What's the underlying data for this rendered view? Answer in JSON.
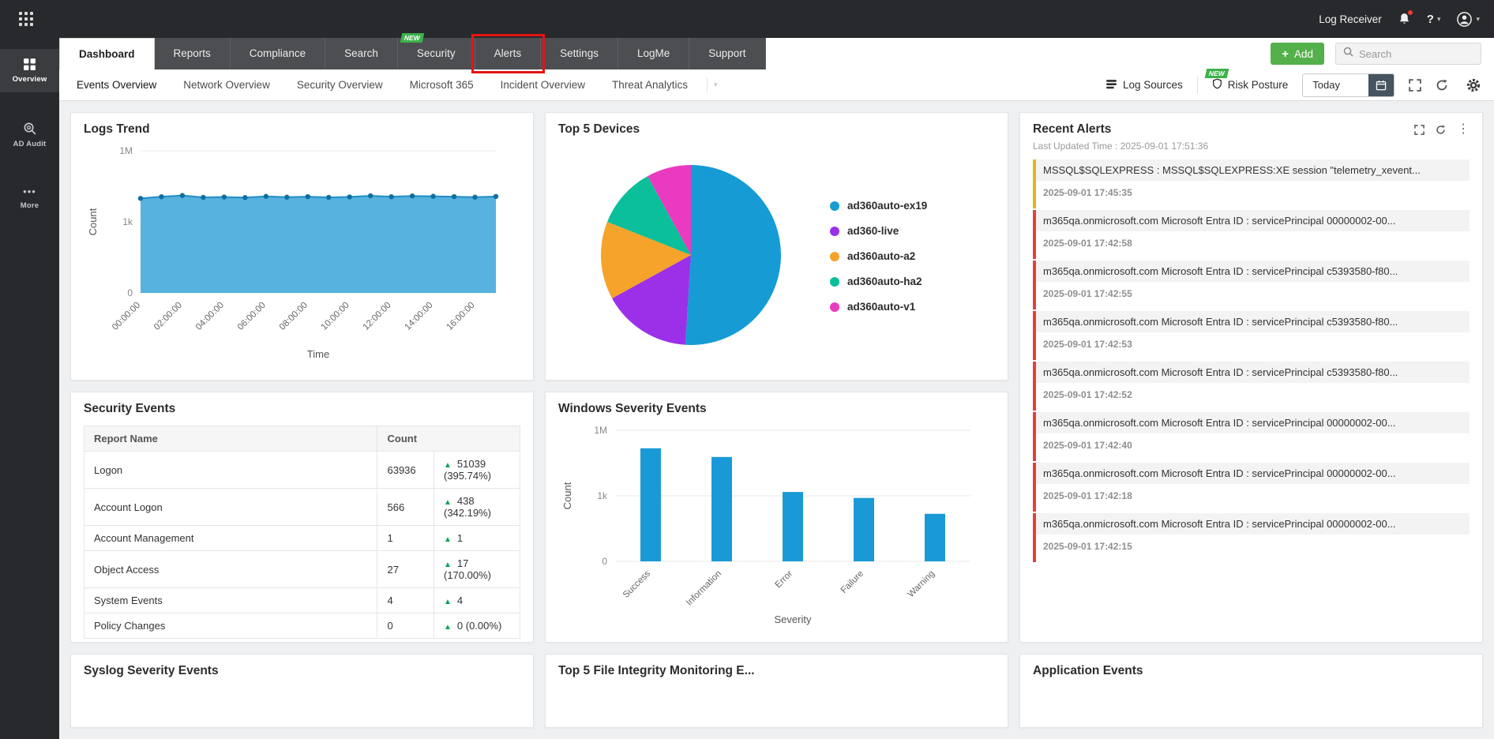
{
  "topbar": {
    "product_label": "Log Receiver"
  },
  "icons": {
    "help": "?",
    "caret": "▾",
    "kebab": "⋮",
    "ellipsis": "•••",
    "plus": "+",
    "trend_up": "▲"
  },
  "colors": {
    "accent_green": "#54b04a",
    "badge_green": "#3cb24a",
    "annotation_red": "#e51414",
    "alert_red": "#e4403a",
    "alert_yellow": "#e3b51c",
    "chart_blue": "#2f9fd8"
  },
  "sidebar": {
    "items": [
      {
        "label": "Overview",
        "active": true
      },
      {
        "label": "AD Audit"
      },
      {
        "label": "More"
      }
    ]
  },
  "tabs": {
    "items": [
      {
        "label": "Dashboard",
        "active": true
      },
      {
        "label": "Reports"
      },
      {
        "label": "Compliance"
      },
      {
        "label": "Search"
      },
      {
        "label": "Security",
        "badge": "NEW"
      },
      {
        "label": "Alerts",
        "annotated": true
      },
      {
        "label": "Settings"
      },
      {
        "label": "LogMe"
      },
      {
        "label": "Support"
      }
    ],
    "add_label": "Add",
    "search_placeholder": "Search"
  },
  "subnav": {
    "items": [
      "Events Overview",
      "Network Overview",
      "Security Overview",
      "Microsoft 365",
      "Incident Overview",
      "Threat Analytics"
    ],
    "log_sources_label": "Log Sources",
    "risk_posture_label": "Risk Posture",
    "risk_posture_badge": "NEW",
    "date_value": "Today"
  },
  "cards": {
    "logs_trend": {
      "title": "Logs Trend"
    },
    "top_devices": {
      "title": "Top 5 Devices"
    },
    "recent_alerts": {
      "title": "Recent Alerts",
      "last_updated": "Last Updated Time : 2025-09-01 17:51:36",
      "items": [
        {
          "text": "MSSQL$SQLEXPRESS : MSSQL$SQLEXPRESS:XE session \"telemetry_xevent...",
          "time": "2025-09-01 17:45:35",
          "severity_color": "#e3b51c"
        },
        {
          "text": "m365qa.onmicrosoft.com Microsoft Entra ID : servicePrincipal 00000002-00...",
          "time": "2025-09-01 17:42:58",
          "severity_color": "#e4403a"
        },
        {
          "text": "m365qa.onmicrosoft.com Microsoft Entra ID : servicePrincipal c5393580-f80...",
          "time": "2025-09-01 17:42:55",
          "severity_color": "#e4403a"
        },
        {
          "text": "m365qa.onmicrosoft.com Microsoft Entra ID : servicePrincipal c5393580-f80...",
          "time": "2025-09-01 17:42:53",
          "severity_color": "#e4403a"
        },
        {
          "text": "m365qa.onmicrosoft.com Microsoft Entra ID : servicePrincipal c5393580-f80...",
          "time": "2025-09-01 17:42:52",
          "severity_color": "#e4403a"
        },
        {
          "text": "m365qa.onmicrosoft.com Microsoft Entra ID : servicePrincipal 00000002-00...",
          "time": "2025-09-01 17:42:40",
          "severity_color": "#e4403a"
        },
        {
          "text": "m365qa.onmicrosoft.com Microsoft Entra ID : servicePrincipal 00000002-00...",
          "time": "2025-09-01 17:42:18",
          "severity_color": "#e4403a"
        },
        {
          "text": "m365qa.onmicrosoft.com Microsoft Entra ID : servicePrincipal 00000002-00...",
          "time": "2025-09-01 17:42:15",
          "severity_color": "#e4403a"
        }
      ]
    },
    "security_events": {
      "title": "Security Events",
      "columns": [
        "Report Name",
        "Count"
      ],
      "rows": [
        {
          "name": "Logon",
          "count": "63936",
          "delta": "51039 (395.74%)"
        },
        {
          "name": "Account Logon",
          "count": "566",
          "delta": "438 (342.19%)"
        },
        {
          "name": "Account Management",
          "count": "1",
          "delta": "1"
        },
        {
          "name": "Object Access",
          "count": "27",
          "delta": "17 (170.00%)"
        },
        {
          "name": "System Events",
          "count": "4",
          "delta": "4"
        },
        {
          "name": "Policy Changes",
          "count": "0",
          "delta": "0 (0.00%)"
        }
      ]
    },
    "windows_severity": {
      "title": "Windows Severity Events"
    },
    "syslog_severity": {
      "title": "Syslog Severity Events"
    },
    "fim": {
      "title": "Top 5 File Integrity Monitoring E..."
    },
    "application_events": {
      "title": "Application Events"
    }
  },
  "chart_data": [
    {
      "id": "logs_trend",
      "type": "area",
      "title": "Logs Trend",
      "xlabel": "Time",
      "ylabel": "Count",
      "y_scale": "log",
      "y_ticks": [
        {
          "v": 0,
          "label": "0"
        },
        {
          "v": 1000,
          "label": "1k"
        },
        {
          "v": 1000000,
          "label": "1M"
        }
      ],
      "x_tick_labels": [
        "00:00:00",
        "02:00:00",
        "04:00:00",
        "06:00:00",
        "08:00:00",
        "10:00:00",
        "12:00:00",
        "14:00:00",
        "16:00:00"
      ],
      "values": [
        9800,
        11500,
        13000,
        10800,
        11200,
        10600,
        11900,
        11000,
        11600,
        10800,
        11300,
        12600,
        11500,
        12400,
        12000,
        11600,
        11000,
        11800
      ],
      "color": "#3aa4d8",
      "line_color": "#1f8fc6",
      "dot_color": "#0f6f9e",
      "grid": true,
      "legend": "none"
    },
    {
      "id": "top5_devices",
      "type": "pie",
      "title": "Top 5 Devices",
      "legend": "right",
      "slices": [
        {
          "label": "ad360auto-ex19",
          "value": 51,
          "color": "#169bd5"
        },
        {
          "label": "ad360-live",
          "value": 16,
          "color": "#9b30e8"
        },
        {
          "label": "ad360auto-a2",
          "value": 14,
          "color": "#f5a32a"
        },
        {
          "label": "ad360auto-ha2",
          "value": 11,
          "color": "#0bbf9a"
        },
        {
          "label": "ad360auto-v1",
          "value": 8,
          "color": "#ea3bc0"
        }
      ]
    },
    {
      "id": "windows_severity",
      "type": "bar",
      "title": "Windows Severity Events",
      "xlabel": "Severity",
      "ylabel": "Count",
      "y_scale": "log",
      "y_ticks": [
        {
          "v": 0,
          "label": "0"
        },
        {
          "v": 1000,
          "label": "1k"
        },
        {
          "v": 1000000,
          "label": "1M"
        }
      ],
      "categories": [
        "Success",
        "Information",
        "Error",
        "Failure",
        "Warning"
      ],
      "values": [
        150000,
        60000,
        1500,
        800,
        150
      ],
      "color": "#199ad6",
      "grid": true,
      "legend": "none"
    }
  ]
}
